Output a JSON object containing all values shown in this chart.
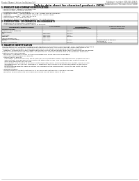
{
  "top_left_text": "Product Name: Lithium Ion Battery Cell",
  "top_right_line1": "Substance number: SDS-049-00615",
  "top_right_line2": "Establishment / Revision: Dec.7.2016",
  "title": "Safety data sheet for chemical products (SDS)",
  "section1_header": "1. PRODUCT AND COMPANY IDENTIFICATION",
  "section1_lines": [
    "  • Product name: Lithium Ion Battery Cell",
    "  • Product code: Cylindrical-type cell",
    "    SN-B8500, SN-18650, SN-B8504",
    "  • Company name:    Sanyo Electric Co., Ltd.  Mobile Energy Company",
    "  • Address:           2001 Kamikanda, Sumoto-City, Hyogo, Japan",
    "  • Telephone number:   +81-799-26-4111",
    "  • Fax number:   +81-799-26-4120",
    "  • Emergency telephone number (daytime): +81-799-26-2642",
    "    (Night and holiday): +81-799-26-2121"
  ],
  "section2_header": "2. COMPOSITION / INFORMATION ON INGREDIENTS",
  "section2_line1": "  • Substance or preparation: Preparation",
  "section2_line2": "  • Information about the chemical nature of product:",
  "tbl_hdr": [
    "Component/chemical names",
    "CAS number",
    "Concentration /\nConcentration range",
    "Classification and\nhazard labeling"
  ],
  "tbl_subhdr": "Several names",
  "tbl_rows": [
    [
      "Lithium cobalt tantalate\n(LiMn+CoO₂)",
      "-",
      "30-40%",
      "-"
    ],
    [
      "Iron",
      "7439-89-6",
      "10-20%",
      "-"
    ],
    [
      "Aluminum",
      "7429-90-5",
      "2-5%",
      "-"
    ],
    [
      "Graphite\n(Mix or graphite-1)\n(ARTFG or graphite-2)",
      "7782-42-5\n7782-44-2",
      "10-20%",
      "-"
    ],
    [
      "Copper",
      "7440-50-8",
      "5-15%",
      "Sensitization of the skin\ngroup No.2"
    ],
    [
      "Organic electrolyte",
      "-",
      "10-20%",
      "Inflammable liquid"
    ]
  ],
  "section3_header": "3. HAZARDS IDENTIFICATION",
  "section3_para1": [
    "  For the battery cell, chemical materials are stored in a hermetically sealed metal case, designed to withstand",
    "  temperatures and pressures experienced during normal use. As a result, during normal use, there is no",
    "  physical danger of ignition or explosion and there is no danger of hazardous materials leakage.",
    "    However, if exposed to a fire, added mechanical shocks, decomposed, when electrolyte releases by misuse,",
    "  the gas released cannot be operated. The battery cell case will be breached of fire-patches, hazardous",
    "  materials may be released.",
    "    Moreover, if heated strongly by the surrounding fire, some gas may be emitted."
  ],
  "section3_bullet1": "  • Most important hazard and effects:",
  "section3_health": "    Human health effects:",
  "section3_health_lines": [
    "      Inhalation: The release of the electrolyte has an anaesthesia action and stimulates a respiratory tract.",
    "      Skin contact: The release of the electrolyte stimulates a skin. The electrolyte skin contact causes a",
    "      sore and stimulation on the skin.",
    "      Eye contact: The release of the electrolyte stimulates eyes. The electrolyte eye contact causes a sore",
    "      and stimulation on the eye. Especially, a substance that causes a strong inflammation of the eye is",
    "      contained.",
    "      Environmental effects: Since a battery cell remains in the environment, do not throw out it into the",
    "      environment."
  ],
  "section3_bullet2": "  • Specific hazards:",
  "section3_specific": [
    "    If the electrolyte contacts with water, it will generate detrimental hydrogen fluoride.",
    "    Since the used electrolyte is inflammable liquid, do not bring close to fire."
  ],
  "bg_color": "#ffffff",
  "gray_section": "#cccccc",
  "gray_table_hdr": "#bbbbbb",
  "border_color": "#777777"
}
